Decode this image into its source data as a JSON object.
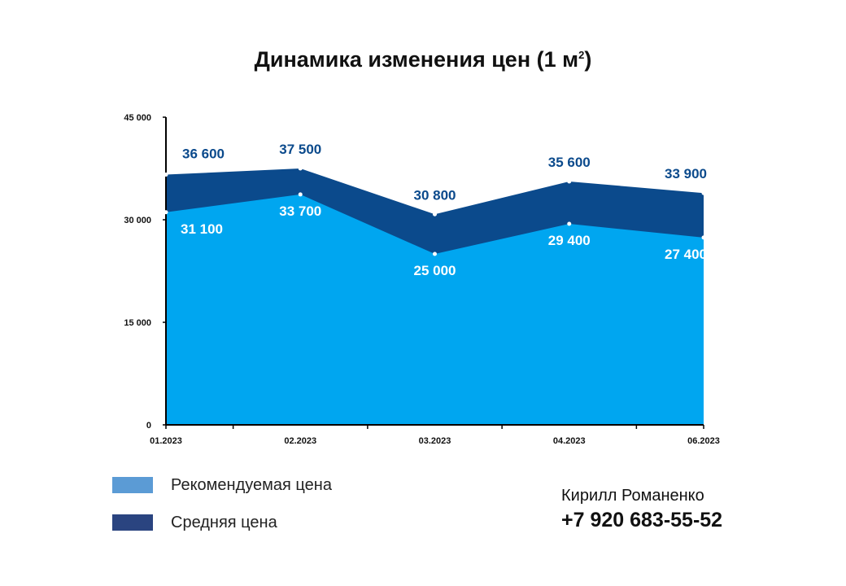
{
  "chart_data": {
    "type": "area",
    "title": "Динамика изменения цен (1 м",
    "title_superscript": "2",
    "categories": [
      "01.2023",
      "02.2023",
      "03.2023",
      "04.2023",
      "06.2023"
    ],
    "series": [
      {
        "name": "Средняя цена",
        "values": [
          36600,
          37500,
          30800,
          35600,
          33900
        ],
        "labels": [
          "36 600",
          "37 500",
          "30 800",
          "35 600",
          "33 900"
        ],
        "color": "#0b4a8c",
        "label_color": "#0b4a8c"
      },
      {
        "name": "Рекомендуемая цена",
        "values": [
          31100,
          33700,
          25000,
          29400,
          27400
        ],
        "labels": [
          "31 100",
          "33 700",
          "25 000",
          "29 400",
          "27 400"
        ],
        "color": "#00a6f0",
        "label_color": "#ffffff"
      }
    ],
    "yticks": [
      0,
      15000,
      30000,
      45000
    ],
    "ytick_labels": [
      "0",
      "15 000",
      "30 000",
      "45 000"
    ],
    "ylim": [
      0,
      45000
    ],
    "grid": false
  },
  "legend": [
    {
      "label": "Рекомендуемая цена",
      "color": "#5b9bd5"
    },
    {
      "label": "Средняя цена",
      "color": "#2a4480"
    }
  ],
  "contact": {
    "name": "Кирилл Романенко",
    "phone": "+7 920 683-55-52"
  }
}
